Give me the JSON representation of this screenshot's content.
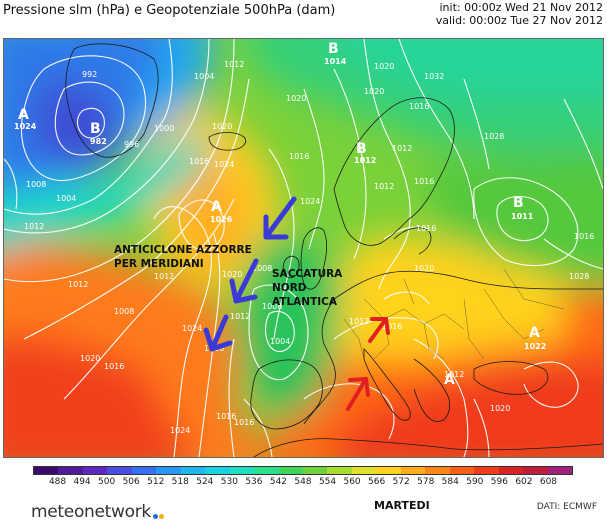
{
  "title": "Pressione slm (hPa) e Geopotenziale 500hPa (dam)",
  "init": "init: 00:00z Wed 21 Nov 2012",
  "valid": "valid: 00:00z Tue 27 Nov 2012",
  "day_label": "MARTEDI",
  "source": "DATI: ECMWF",
  "logo": "meteonetwork",
  "colorbar": {
    "ticks": [
      "488",
      "494",
      "500",
      "506",
      "512",
      "518",
      "524",
      "530",
      "536",
      "542",
      "548",
      "554",
      "560",
      "566",
      "572",
      "578",
      "584",
      "590",
      "596",
      "602",
      "608"
    ],
    "colors": [
      "#3a0a6e",
      "#4f1b9a",
      "#5c2ac0",
      "#4a4ee0",
      "#3470f0",
      "#2796f5",
      "#1db8f0",
      "#19d2e0",
      "#1ee0c0",
      "#28e08a",
      "#3fd45a",
      "#6ed23c",
      "#a8dc2e",
      "#dfe22a",
      "#ffd21e",
      "#ffad1c",
      "#ff861a",
      "#ff5e18",
      "#f43a1c",
      "#dc2222",
      "#c01d3c",
      "#a0207a"
    ]
  },
  "map": {
    "highs_lows": [
      {
        "type": "A",
        "value": "1024"
      },
      {
        "type": "B",
        "value": "982"
      },
      {
        "type": "B",
        "value": "1014"
      },
      {
        "type": "B",
        "value": "1012"
      },
      {
        "type": "A",
        "value": "1026"
      },
      {
        "type": "B",
        "value": "1011"
      },
      {
        "type": "A",
        "value": "1022"
      },
      {
        "type": "A",
        "value": ""
      }
    ],
    "isobar_labels": [
      "992",
      "1004",
      "1012",
      "1000",
      "996",
      "1008",
      "1004",
      "1012",
      "1020",
      "1016",
      "1024",
      "1020",
      "1012",
      "1008",
      "1012",
      "1020",
      "1016",
      "1024",
      "1020",
      "1016",
      "1012",
      "1028",
      "1016",
      "1012",
      "1008",
      "1004",
      "1016",
      "1024",
      "1020",
      "1016",
      "1012",
      "1016",
      "1016",
      "1028",
      "1016",
      "1012",
      "1008",
      "1012",
      "1020",
      "1016",
      "1024",
      "1032",
      "1020",
      "1016",
      "1020"
    ],
    "annotations": {
      "anticyclone": [
        "ANTICICLONE AZZORRE",
        "PER MERIDIANI"
      ],
      "trough": [
        "SACCATURA",
        "NORD",
        "ATLANTICA"
      ]
    }
  }
}
